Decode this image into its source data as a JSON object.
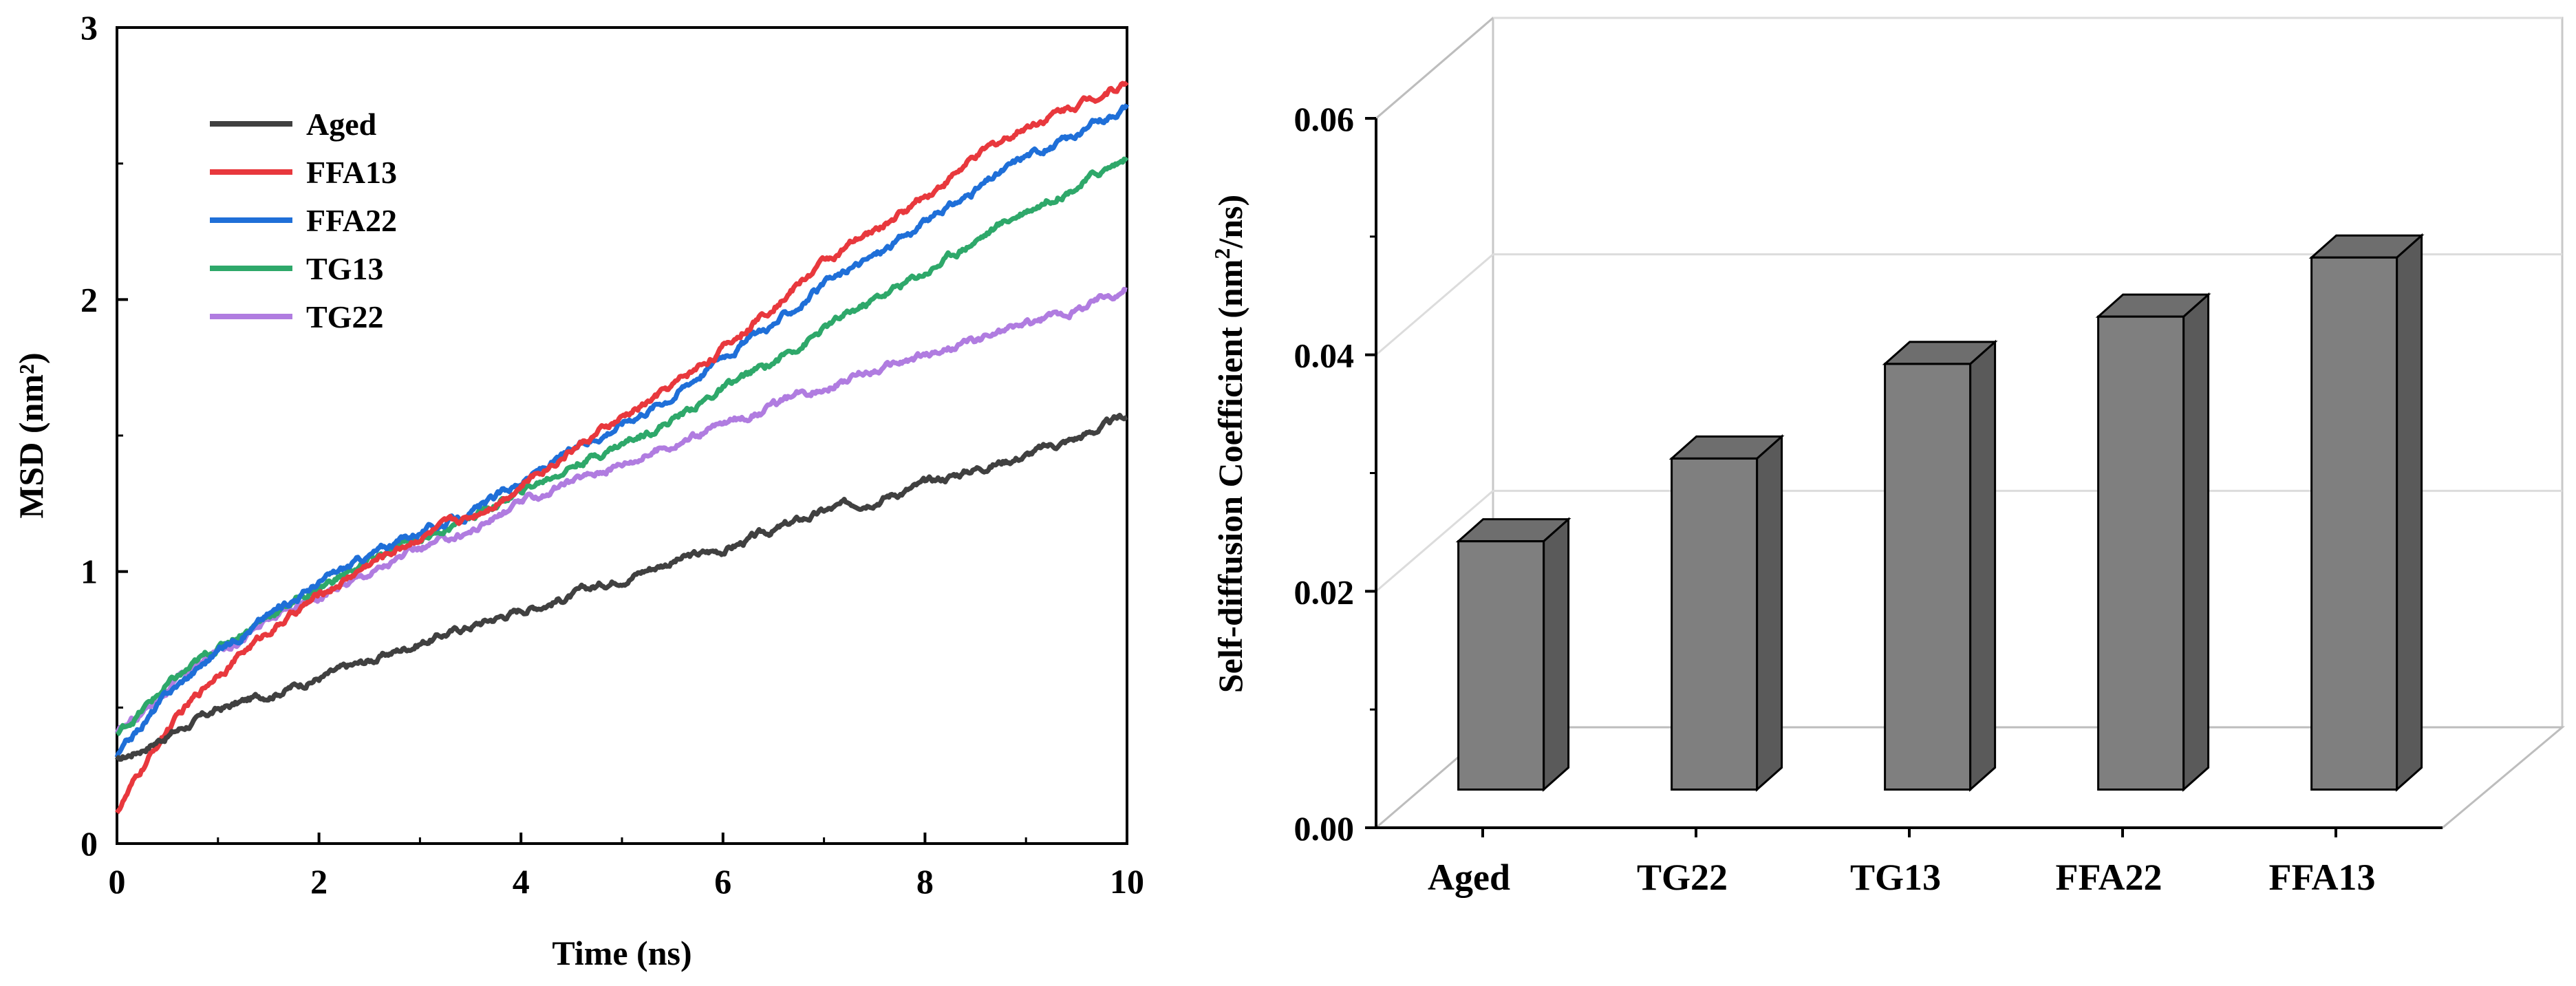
{
  "chart_data": [
    {
      "type": "line",
      "xlabel": "Time (ns)",
      "ylabel": "MSD (nm²)",
      "xlim": [
        0,
        10
      ],
      "ylim": [
        0,
        3
      ],
      "xticks": [
        "0",
        "2",
        "4",
        "6",
        "8",
        "10"
      ],
      "yticks": [
        "0",
        "1",
        "2",
        "3"
      ],
      "legend_position": "top-left",
      "x": [
        0,
        0.5,
        1,
        1.5,
        2,
        2.5,
        3,
        3.5,
        4,
        4.5,
        5,
        5.5,
        6,
        6.5,
        7,
        7.5,
        8,
        8.5,
        9,
        9.5,
        10
      ],
      "series": [
        {
          "name": "Aged",
          "color": "#404040",
          "values": [
            0.3,
            0.4,
            0.49,
            0.55,
            0.61,
            0.67,
            0.74,
            0.8,
            0.86,
            0.91,
            0.98,
            1.04,
            1.08,
            1.15,
            1.22,
            1.27,
            1.32,
            1.38,
            1.43,
            1.49,
            1.57
          ]
        },
        {
          "name": "FFA13",
          "color": "#e8383d",
          "values": [
            0.12,
            0.42,
            0.63,
            0.78,
            0.91,
            1.03,
            1.13,
            1.2,
            1.32,
            1.45,
            1.56,
            1.68,
            1.82,
            1.98,
            2.14,
            2.25,
            2.38,
            2.52,
            2.64,
            2.72,
            2.8
          ]
        },
        {
          "name": "FFA22",
          "color": "#1f6fd8",
          "values": [
            0.32,
            0.55,
            0.71,
            0.84,
            0.96,
            1.06,
            1.15,
            1.21,
            1.33,
            1.44,
            1.55,
            1.65,
            1.8,
            1.91,
            2.05,
            2.16,
            2.28,
            2.4,
            2.53,
            2.6,
            2.72
          ]
        },
        {
          "name": "TG13",
          "color": "#2ea86a",
          "values": [
            0.4,
            0.58,
            0.72,
            0.84,
            0.94,
            1.04,
            1.12,
            1.2,
            1.29,
            1.39,
            1.47,
            1.56,
            1.67,
            1.77,
            1.89,
            2.0,
            2.1,
            2.22,
            2.33,
            2.42,
            2.52
          ]
        },
        {
          "name": "TG22",
          "color": "#b07ce0",
          "values": [
            0.4,
            0.57,
            0.71,
            0.82,
            0.91,
            1.0,
            1.08,
            1.15,
            1.25,
            1.33,
            1.4,
            1.47,
            1.54,
            1.61,
            1.68,
            1.74,
            1.79,
            1.85,
            1.91,
            1.96,
            2.05
          ]
        }
      ]
    },
    {
      "type": "bar",
      "style": "3d",
      "ylabel_main": "Self-diffusion Coefficient (nm",
      "ylabel_sup": "2",
      "ylabel_tail": "/ns)",
      "categories": [
        "Aged",
        "TG22",
        "TG13",
        "FFA22",
        "FFA13"
      ],
      "values": [
        0.021,
        0.028,
        0.036,
        0.04,
        0.045
      ],
      "ylim": [
        0,
        0.06
      ],
      "yticks": [
        "0.00",
        "0.02",
        "0.04",
        "0.06"
      ],
      "bar_color": "#7f7f7f",
      "bar_side_color": "#5a5a5a",
      "bar_top_color": "#6e6e6e"
    }
  ]
}
